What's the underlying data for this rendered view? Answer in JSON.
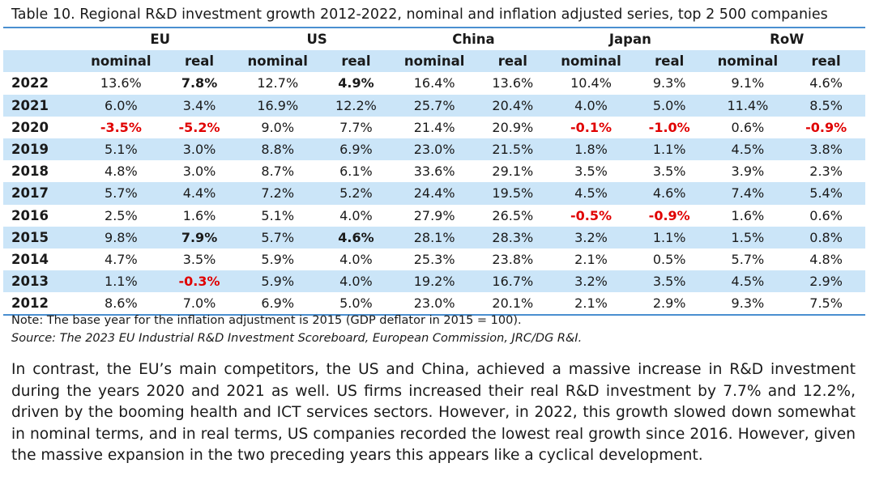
{
  "caption": "Table 10. Regional R&D investment growth 2012-2022, nominal and inflation adjusted series, top 2 500 companies",
  "table": {
    "regions": [
      "EU",
      "US",
      "China",
      "Japan",
      "RoW"
    ],
    "subheaders": [
      "nominal",
      "real",
      "nominal",
      "real",
      "nominal",
      "real",
      "nominal",
      "real",
      "nominal",
      "real"
    ],
    "rows": [
      {
        "year": "2022",
        "values": [
          "13.6%",
          "7.8%",
          "12.7%",
          "4.9%",
          "16.4%",
          "13.6%",
          "10.4%",
          "9.3%",
          "9.1%",
          "4.6%"
        ]
      },
      {
        "year": "2021",
        "values": [
          "6.0%",
          "3.4%",
          "16.9%",
          "12.2%",
          "25.7%",
          "20.4%",
          "4.0%",
          "5.0%",
          "11.4%",
          "8.5%"
        ]
      },
      {
        "year": "2020",
        "values": [
          "-3.5%",
          "-5.2%",
          "9.0%",
          "7.7%",
          "21.4%",
          "20.9%",
          "-0.1%",
          "-1.0%",
          "0.6%",
          "-0.9%"
        ]
      },
      {
        "year": "2019",
        "values": [
          "5.1%",
          "3.0%",
          "8.8%",
          "6.9%",
          "23.0%",
          "21.5%",
          "1.8%",
          "1.1%",
          "4.5%",
          "3.8%"
        ]
      },
      {
        "year": "2018",
        "values": [
          "4.8%",
          "3.0%",
          "8.7%",
          "6.1%",
          "33.6%",
          "29.1%",
          "3.5%",
          "3.5%",
          "3.9%",
          "2.3%"
        ]
      },
      {
        "year": "2017",
        "values": [
          "5.7%",
          "4.4%",
          "7.2%",
          "5.2%",
          "24.4%",
          "19.5%",
          "4.5%",
          "4.6%",
          "7.4%",
          "5.4%"
        ]
      },
      {
        "year": "2016",
        "values": [
          "2.5%",
          "1.6%",
          "5.1%",
          "4.0%",
          "27.9%",
          "26.5%",
          "-0.5%",
          "-0.9%",
          "1.6%",
          "0.6%"
        ]
      },
      {
        "year": "2015",
        "values": [
          "9.8%",
          "7.9%",
          "5.7%",
          "4.6%",
          "28.1%",
          "28.3%",
          "3.2%",
          "1.1%",
          "1.5%",
          "0.8%"
        ]
      },
      {
        "year": "2014",
        "values": [
          "4.7%",
          "3.5%",
          "5.9%",
          "4.0%",
          "25.3%",
          "23.8%",
          "2.1%",
          "0.5%",
          "5.7%",
          "4.8%"
        ]
      },
      {
        "year": "2013",
        "values": [
          "1.1%",
          "-0.3%",
          "5.9%",
          "4.0%",
          "19.2%",
          "16.7%",
          "3.2%",
          "3.5%",
          "4.5%",
          "2.9%"
        ]
      },
      {
        "year": "2012",
        "values": [
          "8.6%",
          "7.0%",
          "6.9%",
          "5.0%",
          "23.0%",
          "20.1%",
          "2.1%",
          "2.9%",
          "9.3%",
          "7.5%"
        ]
      }
    ],
    "colors": {
      "negative": "#e00000",
      "band": "#cbe5f8",
      "rule": "#4a8fd0"
    }
  },
  "note": "Note: The base year for the inflation adjustment is 2015 (GDP deflator in 2015 = 100).",
  "source": "Source: The 2023 EU Industrial R&D Investment Scoreboard, European Commission, JRC/DG R&I.",
  "paragraph": "In contrast, the EU’s main competitors, the US and China, achieved a massive increase in R&D investment during the years 2020 and 2021 as well. US firms increased their real R&D investment by 7.7% and 12.2%, driven by the booming health and ICT services sectors. However, in 2022, this growth slowed down somewhat in nominal terms, and in real terms, US companies recorded the lowest real growth since 2016. However, given the massive expansion in the two preceding years this appears like a cyclical development."
}
